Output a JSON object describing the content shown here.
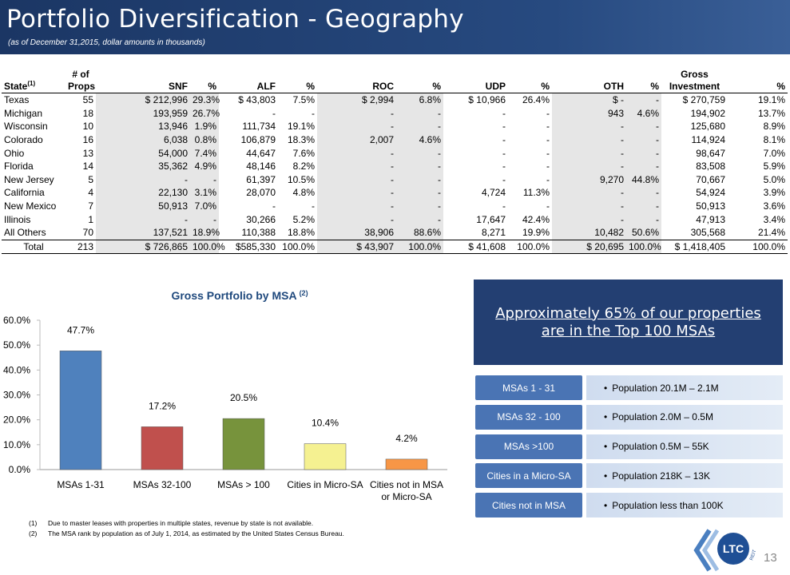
{
  "header": {
    "title": "Portfolio Diversification - Geography",
    "subtitle": "(as of December 31,2015, dollar amounts in thousands)"
  },
  "table": {
    "columns": [
      {
        "label": "State",
        "note": "(1)"
      },
      {
        "top": "# of",
        "label": "Props"
      },
      {
        "label": "SNF"
      },
      {
        "label": "%"
      },
      {
        "label": "ALF"
      },
      {
        "label": "%"
      },
      {
        "label": "ROC"
      },
      {
        "label": "%"
      },
      {
        "label": "UDP"
      },
      {
        "label": "%"
      },
      {
        "label": "OTH"
      },
      {
        "label": "%"
      },
      {
        "top": "Gross",
        "label": "Investment"
      },
      {
        "label": "%"
      }
    ],
    "rows": [
      [
        "Texas",
        "55",
        "$ 212,996",
        "29.3%",
        "$ 43,803",
        "7.5%",
        "$ 2,994",
        "6.8%",
        "$ 10,966",
        "26.4%",
        "$ -",
        "-",
        "$ 270,759",
        "19.1%"
      ],
      [
        "Michigan",
        "18",
        "193,959",
        "26.7%",
        "-",
        "-",
        "-",
        "-",
        "-",
        "-",
        "943",
        "4.6%",
        "194,902",
        "13.7%"
      ],
      [
        "Wisconsin",
        "10",
        "13,946",
        "1.9%",
        "111,734",
        "19.1%",
        "-",
        "-",
        "-",
        "-",
        "-",
        "-",
        "125,680",
        "8.9%"
      ],
      [
        "Colorado",
        "16",
        "6,038",
        "0.8%",
        "106,879",
        "18.3%",
        "2,007",
        "4.6%",
        "-",
        "-",
        "-",
        "-",
        "114,924",
        "8.1%"
      ],
      [
        "Ohio",
        "13",
        "54,000",
        "7.4%",
        "44,647",
        "7.6%",
        "-",
        "-",
        "-",
        "-",
        "-",
        "-",
        "98,647",
        "7.0%"
      ],
      [
        "Florida",
        "14",
        "35,362",
        "4.9%",
        "48,146",
        "8.2%",
        "-",
        "-",
        "-",
        "-",
        "-",
        "-",
        "83,508",
        "5.9%"
      ],
      [
        "New Jersey",
        "5",
        "-",
        "-",
        "61,397",
        "10.5%",
        "-",
        "-",
        "-",
        "-",
        "9,270",
        "44.8%",
        "70,667",
        "5.0%"
      ],
      [
        "California",
        "4",
        "22,130",
        "3.1%",
        "28,070",
        "4.8%",
        "-",
        "-",
        "4,724",
        "11.3%",
        "-",
        "-",
        "54,924",
        "3.9%"
      ],
      [
        "New Mexico",
        "7",
        "50,913",
        "7.0%",
        "-",
        "-",
        "-",
        "-",
        "-",
        "-",
        "-",
        "-",
        "50,913",
        "3.6%"
      ],
      [
        "Illinois",
        "1",
        "-",
        "-",
        "30,266",
        "5.2%",
        "-",
        "-",
        "17,647",
        "42.4%",
        "-",
        "-",
        "47,913",
        "3.4%"
      ],
      [
        "All Others",
        "70",
        "137,521",
        "18.9%",
        "110,388",
        "18.8%",
        "38,906",
        "88.6%",
        "8,271",
        "19.9%",
        "10,482",
        "50.6%",
        "305,568",
        "21.4%"
      ]
    ],
    "total": [
      "Total",
      "213",
      "$ 726,865",
      "100.0%",
      "$585,330",
      "100.0%",
      "$ 43,907",
      "100.0%",
      "$ 41,608",
      "100.0%",
      "$ 20,695",
      "100.0%",
      "$ 1,418,405",
      "100.0%"
    ]
  },
  "chart_data": {
    "type": "bar",
    "title": "Gross Portfolio by MSA",
    "title_note": "(2)",
    "categories": [
      "MSAs 1-31",
      "MSAs 32-100",
      "MSAs > 100",
      "Cities in Micro-SA",
      "Cities not in MSA or Micro-SA"
    ],
    "values": [
      47.7,
      17.2,
      20.5,
      10.4,
      4.2
    ],
    "value_labels": [
      "47.7%",
      "17.2%",
      "20.5%",
      "10.4%",
      "4.2%"
    ],
    "colors": [
      "#4f81bd",
      "#c0504d",
      "#77933c",
      "#f5f191",
      "#f79646"
    ],
    "ylim": [
      0,
      60
    ],
    "yticks": [
      {
        "value": 0,
        "label": "0.0%"
      },
      {
        "value": 10,
        "label": "10.0%"
      },
      {
        "value": 20,
        "label": "20.0%"
      },
      {
        "value": 30,
        "label": "30.0%"
      },
      {
        "value": 40,
        "label": "40.0%"
      },
      {
        "value": 50,
        "label": "50.0%"
      },
      {
        "value": 60,
        "label": "60.0%"
      }
    ],
    "grid": false
  },
  "msa_panel": {
    "headline": "Approximately 65% of our properties are in the Top 100 MSAs",
    "rows": [
      {
        "label": "MSAs 1 - 31",
        "text": "Population 20.1M – 2.1M"
      },
      {
        "label": "MSAs 32 - 100",
        "text": "Population 2.0M – 0.5M"
      },
      {
        "label": "MSAs >100",
        "text": "Population 0.5M – 55K"
      },
      {
        "label": "Cities in a Micro-SA",
        "text": "Population 218K – 13K"
      },
      {
        "label": "Cities not in MSA",
        "text": "Population less than 100K"
      }
    ]
  },
  "footnotes": [
    {
      "marker": "(1)",
      "text": "Due to master leases with properties in multiple states, revenue by state is not available."
    },
    {
      "marker": "(2)",
      "text": "The MSA rank by population as of July 1, 2014, as estimated by the United States Census Bureau."
    }
  ],
  "logo": {
    "text": "LTC",
    "sub": "REIT"
  },
  "page_number": "13"
}
